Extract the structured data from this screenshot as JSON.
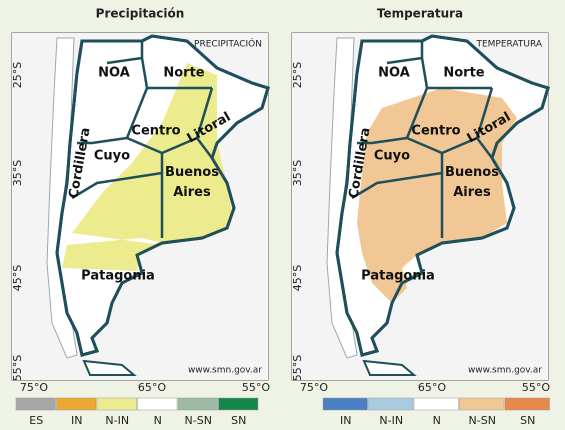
{
  "panels": [
    {
      "title": "Precipitación",
      "map_label": "PRECIPITACIÓN",
      "highlight_color": "#ecec8e",
      "regions": [
        "NOA",
        "Norte",
        "Centro",
        "Litoral",
        "Cuyo",
        "Buenos Aires",
        "Cordillera",
        "Patagonia"
      ],
      "lat_labels": [
        "25°S",
        "35°S",
        "45°S",
        "55°S"
      ],
      "lon_labels": [
        "75°O",
        "65°O",
        "55°O"
      ],
      "source": "www.smn.gov.ar",
      "legend": [
        {
          "label": "ES",
          "color": "#a6a6a6"
        },
        {
          "label": "IN",
          "color": "#eba832"
        },
        {
          "label": "N-IN",
          "color": "#ecec8e"
        },
        {
          "label": "N",
          "color": "#ffffff"
        },
        {
          "label": "N-SN",
          "color": "#9fbaa6"
        },
        {
          "label": "SN",
          "color": "#15854a"
        }
      ]
    },
    {
      "title": "Temperatura",
      "map_label": "TEMPERATURA",
      "highlight_color": "#f2c796",
      "regions": [
        "NOA",
        "Norte",
        "Centro",
        "Litoral",
        "Cuyo",
        "Buenos Aires",
        "Cordillera",
        "Patagonia"
      ],
      "lat_labels": [
        "25°S",
        "35°S",
        "45°S",
        "55°S"
      ],
      "lon_labels": [
        "75°O",
        "65°O",
        "55°O"
      ],
      "source": "www.smn.gov.ar",
      "legend": [
        {
          "label": "IN",
          "color": "#4a7fc1"
        },
        {
          "label": "N-IN",
          "color": "#a9cbe0"
        },
        {
          "label": "N",
          "color": "#ffffff"
        },
        {
          "label": "N-SN",
          "color": "#f2c796"
        },
        {
          "label": "SN",
          "color": "#e8884a"
        }
      ]
    }
  ]
}
